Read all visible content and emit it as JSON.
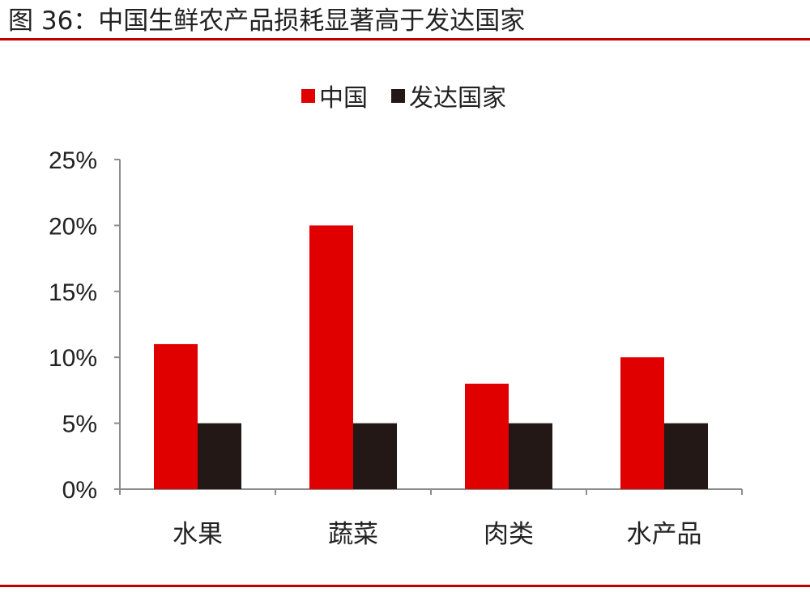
{
  "figure": {
    "title": "图 36：中国生鲜农产品损耗显著高于发达国家"
  },
  "colors": {
    "rule": "#c00000",
    "china": "#e00000",
    "developed": "#231815",
    "axis": "#8c8c8c"
  },
  "chart_data": {
    "type": "bar",
    "categories": [
      "水果",
      "蔬菜",
      "肉类",
      "水产品"
    ],
    "series": [
      {
        "name": "中国",
        "values": [
          11,
          20,
          8,
          10
        ]
      },
      {
        "name": "发达国家",
        "values": [
          5,
          5,
          5,
          5
        ]
      }
    ],
    "y_ticks": [
      "0%",
      "5%",
      "10%",
      "15%",
      "20%",
      "25%"
    ],
    "ylim": [
      0,
      25
    ],
    "y_unit": "%",
    "grid": false,
    "legend": "top-center"
  }
}
